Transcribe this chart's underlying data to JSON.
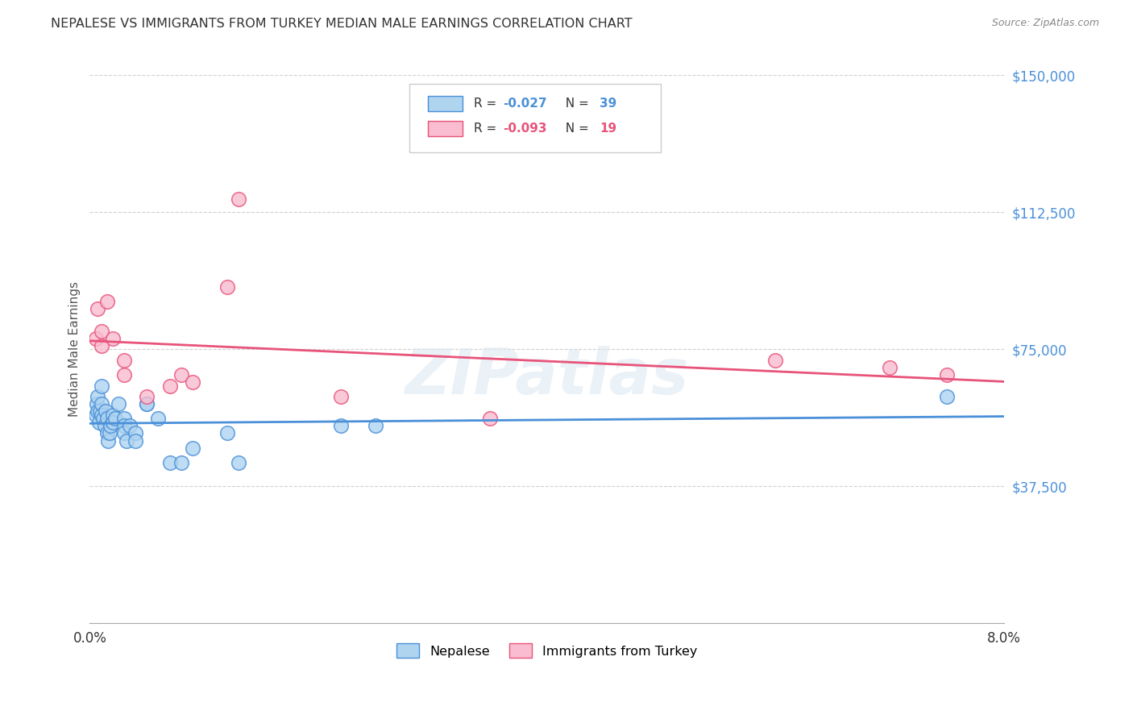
{
  "title": "NEPALESE VS IMMIGRANTS FROM TURKEY MEDIAN MALE EARNINGS CORRELATION CHART",
  "source": "Source: ZipAtlas.com",
  "ylabel": "Median Male Earnings",
  "xlim": [
    0.0,
    0.08
  ],
  "ylim": [
    0,
    150000
  ],
  "yticks": [
    0,
    37500,
    75000,
    112500,
    150000
  ],
  "ytick_labels": [
    "",
    "$37,500",
    "$75,000",
    "$112,500",
    "$150,000"
  ],
  "xticks": [
    0.0,
    0.01,
    0.02,
    0.03,
    0.04,
    0.05,
    0.06,
    0.07,
    0.08
  ],
  "xtick_labels": [
    "0.0%",
    "",
    "",
    "",
    "",
    "",
    "",
    "",
    "8.0%"
  ],
  "blue_color": "#aed4f0",
  "pink_color": "#f9bcd0",
  "blue_line_color": "#4a90d9",
  "pink_line_color": "#e8537a",
  "R_blue": -0.027,
  "N_blue": 39,
  "R_pink": -0.093,
  "N_pink": 19,
  "watermark": "ZIPatlas",
  "blue_x": [
    0.0005,
    0.0006,
    0.0007,
    0.0007,
    0.0008,
    0.0009,
    0.001,
    0.001,
    0.001,
    0.0012,
    0.0013,
    0.0014,
    0.0015,
    0.0015,
    0.0016,
    0.0017,
    0.0018,
    0.002,
    0.002,
    0.0022,
    0.0025,
    0.003,
    0.003,
    0.003,
    0.0032,
    0.0035,
    0.004,
    0.004,
    0.005,
    0.005,
    0.006,
    0.007,
    0.008,
    0.009,
    0.012,
    0.013,
    0.022,
    0.025,
    0.075
  ],
  "blue_y": [
    57000,
    60000,
    62000,
    58000,
    55000,
    58000,
    65000,
    60000,
    57000,
    56000,
    54000,
    58000,
    52000,
    56000,
    50000,
    52000,
    54000,
    57000,
    55000,
    56000,
    60000,
    56000,
    54000,
    52000,
    50000,
    54000,
    52000,
    50000,
    60000,
    60000,
    56000,
    44000,
    44000,
    48000,
    52000,
    44000,
    54000,
    54000,
    62000
  ],
  "pink_x": [
    0.0005,
    0.0007,
    0.001,
    0.001,
    0.0015,
    0.002,
    0.003,
    0.003,
    0.005,
    0.007,
    0.008,
    0.009,
    0.012,
    0.013,
    0.022,
    0.035,
    0.06,
    0.07,
    0.075
  ],
  "pink_y": [
    78000,
    86000,
    80000,
    76000,
    88000,
    78000,
    72000,
    68000,
    62000,
    65000,
    68000,
    66000,
    92000,
    116000,
    62000,
    56000,
    72000,
    70000,
    68000
  ]
}
